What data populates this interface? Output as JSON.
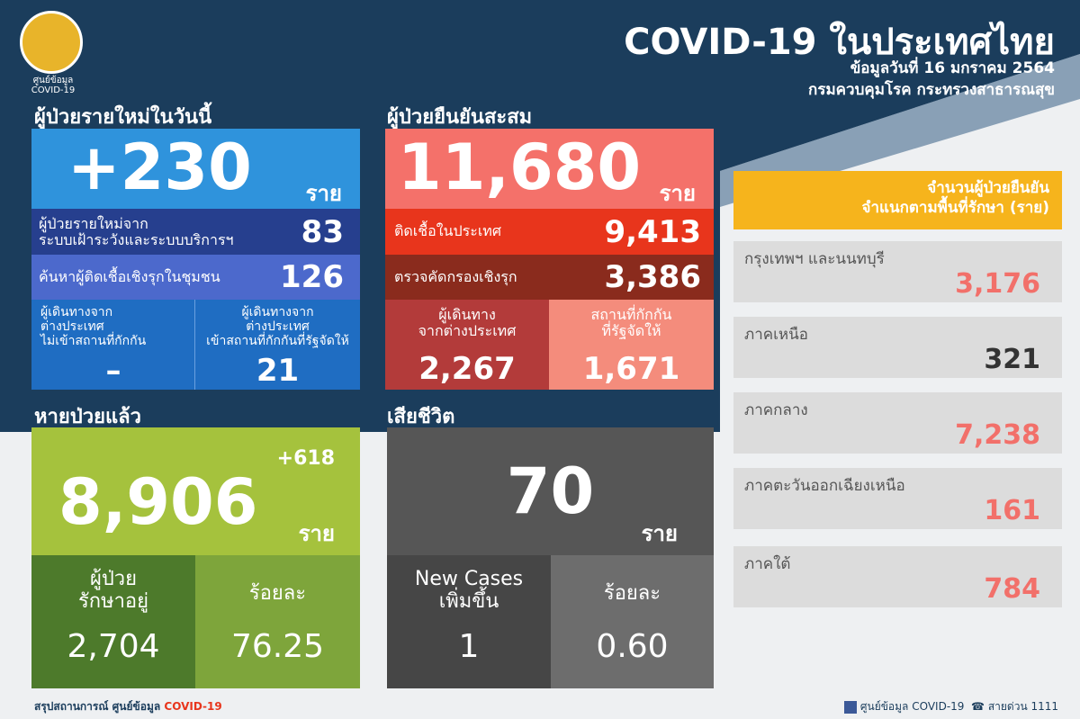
{
  "header": {
    "logo_lines": [
      "ศูนย์ข้อมูล",
      "COVID-19"
    ],
    "title": "COVID-19 ในประเทศไทย",
    "date": "ข้อมูลวันที่ 16 มกราคม 2564",
    "source": "กรมควบคุมโรค กระทรวงสาธารณสุข"
  },
  "new_cases": {
    "heading": "ผู้ป่วยรายใหม่ในวันนี้",
    "total": "+230",
    "unit": "ราย",
    "rows": [
      {
        "label": "ผู้ป่วยรายใหม่จาก\nระบบเฝ้าระวังและระบบบริการฯ",
        "value": "83"
      },
      {
        "label": "ค้นหาผู้ติดเชื้อเชิงรุกในชุมชน",
        "value": "126"
      }
    ],
    "travelers": [
      {
        "label": "ผู้เดินทางจาก\nต่างประเทศ\nไม่เข้าสถานที่กักกัน",
        "value": "–"
      },
      {
        "label": "ผู้เดินทางจาก\nต่างประเทศ\nเข้าสถานที่กักกันที่รัฐจัดให้",
        "value": "21"
      }
    ]
  },
  "cumulative": {
    "heading": "ผู้ป่วยยืนยันสะสม",
    "total": "11,680",
    "unit": "ราย",
    "rows": [
      {
        "label": "ติดเชื้อในประเทศ",
        "value": "9,413"
      },
      {
        "label": "ตรวจคัดกรองเชิงรุก",
        "value": "3,386"
      }
    ],
    "splits": [
      {
        "label": "ผู้เดินทาง\nจากต่างประเทศ",
        "value": "2,267"
      },
      {
        "label": "สถานที่กักกัน\nที่รัฐจัดให้",
        "value": "1,671"
      }
    ]
  },
  "recovered": {
    "heading": "หายป่วยแล้ว",
    "increase": "+618",
    "total": "8,906",
    "unit": "ราย",
    "splits": [
      {
        "label": "ผู้ป่วย\nรักษาอยู่",
        "value": "2,704"
      },
      {
        "label": "ร้อยละ",
        "value": "76.25"
      }
    ]
  },
  "deaths": {
    "heading": "เสียชีวิต",
    "total": "70",
    "unit": "ราย",
    "splits": [
      {
        "label": "New Cases\nเพิ่มขึ้น",
        "value": "1"
      },
      {
        "label": "ร้อยละ",
        "value": "0.60"
      }
    ]
  },
  "regions": {
    "heading": "จำนวนผู้ป่วยยืนยัน\nจำแนกตามพื้นที่รักษา (ราย)",
    "items": [
      {
        "name": "กรุงเทพฯ และนนทบุรี",
        "value": "3,176",
        "color": "#f2706a"
      },
      {
        "name": "ภาคเหนือ",
        "value": "321",
        "color": "#333333"
      },
      {
        "name": "ภาคกลาง",
        "value": "7,238",
        "color": "#f2706a"
      },
      {
        "name": "ภาคตะวันออกเฉียงเหนือ",
        "value": "161",
        "color": "#f2706a"
      },
      {
        "name": "ภาคใต้",
        "value": "784",
        "color": "#f2706a"
      }
    ]
  },
  "footer": {
    "left": "สรุปสถานการณ์ ศูนย์ข้อมูล",
    "left_highlight": "COVID-19",
    "right": "ศูนย์ข้อมูล COVID-19",
    "hotline": "สายด่วน 1111"
  }
}
